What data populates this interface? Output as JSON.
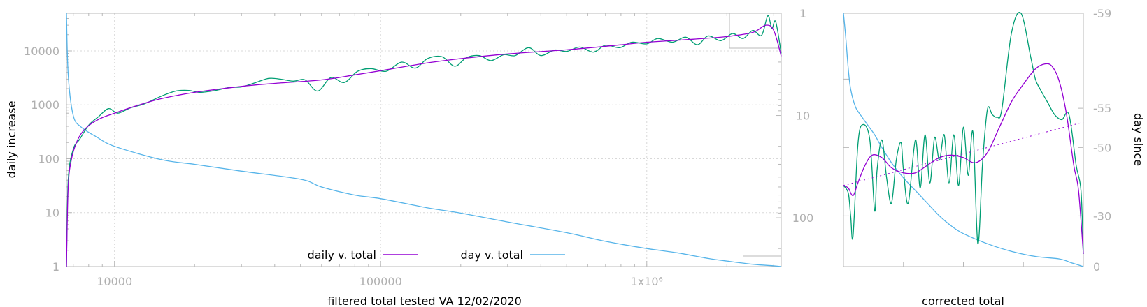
{
  "colors": {
    "daily": "#9400d3",
    "day": "#56b4e9",
    "raw": "#009e73",
    "frame": "#b8b8b8",
    "tick_text": "#b0b0b0"
  },
  "chart_data": [
    {
      "type": "line",
      "xlabel": "filtered total tested VA 12/02/2020",
      "ylabel": "daily increase",
      "x_scale": "log",
      "y_scale": "log",
      "y2_scale": "log, reversed",
      "xlim": [
        6600,
        3200000
      ],
      "ylim": [
        1,
        50000
      ],
      "y2lim": [
        1,
        300
      ],
      "xticks": [
        {
          "v": 10000,
          "label": "10000"
        },
        {
          "v": 100000,
          "label": "100000"
        },
        {
          "v": 1000000,
          "label": "1x10⁶"
        }
      ],
      "yticks": [
        {
          "v": 1,
          "label": "1"
        },
        {
          "v": 10,
          "label": "10"
        },
        {
          "v": 100,
          "label": "100"
        },
        {
          "v": 1000,
          "label": "1000"
        },
        {
          "v": 10000,
          "label": "10000"
        }
      ],
      "y2ticks": [
        {
          "v": 1,
          "label": "1"
        },
        {
          "v": 10,
          "label": "10"
        },
        {
          "v": 100,
          "label": "100"
        }
      ],
      "grid": true,
      "legend_position": "bottom-center",
      "series": [
        {
          "name": "daily v. total",
          "color_key": "daily",
          "axis": "y",
          "x": [
            6600,
            6700,
            6900,
            7200,
            7600,
            8200,
            9000,
            10000,
            12000,
            15000,
            20000,
            30000,
            40000,
            60000,
            80000,
            100000,
            150000,
            200000,
            300000,
            500000,
            800000,
            1000000,
            1500000,
            2000000,
            2500000,
            2800000,
            3000000,
            3200000
          ],
          "y": [
            1,
            30,
            100,
            200,
            320,
            450,
            580,
            700,
            950,
            1300,
            1700,
            2200,
            2500,
            2900,
            3600,
            4300,
            6000,
            7200,
            8800,
            10500,
            13000,
            14500,
            16500,
            18500,
            22000,
            30000,
            24000,
            8000
          ]
        },
        {
          "name": "day v. total",
          "color_key": "day",
          "axis": "y2",
          "x": [
            6600,
            6700,
            7000,
            7500,
            8500,
            10000,
            15000,
            20000,
            30000,
            50000,
            60000,
            80000,
            100000,
            150000,
            200000,
            300000,
            500000,
            700000,
            1000000,
            1300000,
            1700000,
            2000000,
            2500000,
            3000000,
            3200000
          ],
          "y": [
            1,
            4,
            10,
            13,
            16,
            20,
            27,
            30,
            35,
            42,
            50,
            60,
            65,
            80,
            90,
            110,
            140,
            170,
            200,
            220,
            250,
            265,
            285,
            295,
            300
          ]
        },
        {
          "name": "",
          "color_key": "raw",
          "axis": "y",
          "x": [
            6600,
            6700,
            7000,
            7400,
            8000,
            8700,
            9500,
            10300,
            11500,
            13000,
            15000,
            17000,
            19000,
            21000,
            24000,
            27000,
            30000,
            34000,
            38000,
            42000,
            47000,
            52000,
            58000,
            65000,
            73000,
            82000,
            92000,
            105000,
            120000,
            135000,
            150000,
            170000,
            190000,
            210000,
            235000,
            260000,
            290000,
            320000,
            360000,
            400000,
            450000,
            500000,
            560000,
            630000,
            700000,
            790000,
            880000,
            1000000,
            1100000,
            1250000,
            1400000,
            1550000,
            1700000,
            1900000,
            2100000,
            2300000,
            2500000,
            2700000,
            2850000,
            2950000,
            3050000,
            3200000
          ],
          "y": [
            1,
            40,
            150,
            230,
            420,
            600,
            850,
            700,
            880,
            1050,
            1450,
            1800,
            1850,
            1700,
            1850,
            2100,
            2150,
            2600,
            3100,
            3000,
            2750,
            2900,
            1800,
            3200,
            2600,
            4200,
            4700,
            4200,
            6200,
            4800,
            7200,
            7800,
            5200,
            7500,
            8200,
            6600,
            8500,
            8200,
            11500,
            8200,
            10400,
            9800,
            11800,
            9500,
            12800,
            11500,
            14500,
            13500,
            17000,
            14500,
            18000,
            13000,
            19000,
            15500,
            21000,
            17000,
            24000,
            19500,
            45000,
            26000,
            35000,
            9000
          ]
        }
      ]
    },
    {
      "type": "line",
      "xlabel": "corrected total",
      "ylabel": "day since",
      "y2ticks": [
        {
          "v": -59,
          "label": "-59"
        },
        {
          "v": -55,
          "label": "-55"
        },
        {
          "v": -50,
          "label": "-50"
        },
        {
          "v": -30,
          "label": "-30"
        },
        {
          "v": 0,
          "label": "0"
        }
      ],
      "x_scale": "linear",
      "y_scale": "linear",
      "xlim": [
        0,
        1
      ],
      "ylim": [
        0,
        1
      ],
      "grid": false,
      "series": [
        {
          "name": "",
          "color_key": "daily",
          "axis": "y",
          "x": [
            0.0,
            0.02,
            0.04,
            0.06,
            0.09,
            0.12,
            0.16,
            0.2,
            0.25,
            0.3,
            0.35,
            0.4,
            0.45,
            0.5,
            0.55,
            0.6,
            0.65,
            0.7,
            0.75,
            0.8,
            0.84,
            0.87,
            0.9,
            0.93,
            0.96,
            0.98,
            1.0
          ],
          "y": [
            0.32,
            0.31,
            0.28,
            0.33,
            0.4,
            0.44,
            0.43,
            0.39,
            0.37,
            0.37,
            0.4,
            0.43,
            0.44,
            0.43,
            0.41,
            0.45,
            0.55,
            0.65,
            0.72,
            0.78,
            0.8,
            0.79,
            0.73,
            0.6,
            0.4,
            0.3,
            0.05
          ]
        },
        {
          "name": "",
          "color_key": "daily",
          "axis": "y",
          "dashed": true,
          "x": [
            0.0,
            1.0
          ],
          "y": [
            0.32,
            0.57
          ]
        },
        {
          "name": "",
          "color_key": "day",
          "axis": "y2",
          "x": [
            0.0,
            0.01,
            0.02,
            0.03,
            0.05,
            0.07,
            0.1,
            0.13,
            0.16,
            0.2,
            0.25,
            0.3,
            0.35,
            0.4,
            0.45,
            0.5,
            0.6,
            0.7,
            0.8,
            0.9,
            0.95,
            1.0
          ],
          "y": [
            1.0,
            0.9,
            0.78,
            0.7,
            0.63,
            0.6,
            0.56,
            0.52,
            0.47,
            0.41,
            0.35,
            0.3,
            0.25,
            0.2,
            0.16,
            0.13,
            0.09,
            0.06,
            0.04,
            0.03,
            0.015,
            0.0
          ]
        },
        {
          "name": "",
          "color_key": "raw",
          "axis": "y",
          "x": [
            0.0,
            0.02,
            0.03,
            0.04,
            0.06,
            0.08,
            0.11,
            0.13,
            0.14,
            0.16,
            0.18,
            0.2,
            0.22,
            0.24,
            0.25,
            0.27,
            0.3,
            0.32,
            0.34,
            0.36,
            0.38,
            0.4,
            0.42,
            0.44,
            0.46,
            0.48,
            0.5,
            0.52,
            0.54,
            0.56,
            0.58,
            0.6,
            0.62,
            0.64,
            0.66,
            0.7,
            0.74,
            0.78,
            0.8,
            0.82,
            0.85,
            0.88,
            0.91,
            0.94,
            0.97,
            0.99,
            1.0
          ],
          "y": [
            0.32,
            0.29,
            0.2,
            0.12,
            0.48,
            0.56,
            0.5,
            0.22,
            0.38,
            0.5,
            0.35,
            0.25,
            0.42,
            0.49,
            0.38,
            0.25,
            0.5,
            0.31,
            0.52,
            0.33,
            0.51,
            0.42,
            0.52,
            0.33,
            0.52,
            0.32,
            0.55,
            0.36,
            0.53,
            0.09,
            0.41,
            0.62,
            0.6,
            0.59,
            0.62,
            0.92,
            1.0,
            0.83,
            0.74,
            0.7,
            0.65,
            0.6,
            0.58,
            0.6,
            0.4,
            0.3,
            0.05
          ]
        }
      ]
    }
  ]
}
